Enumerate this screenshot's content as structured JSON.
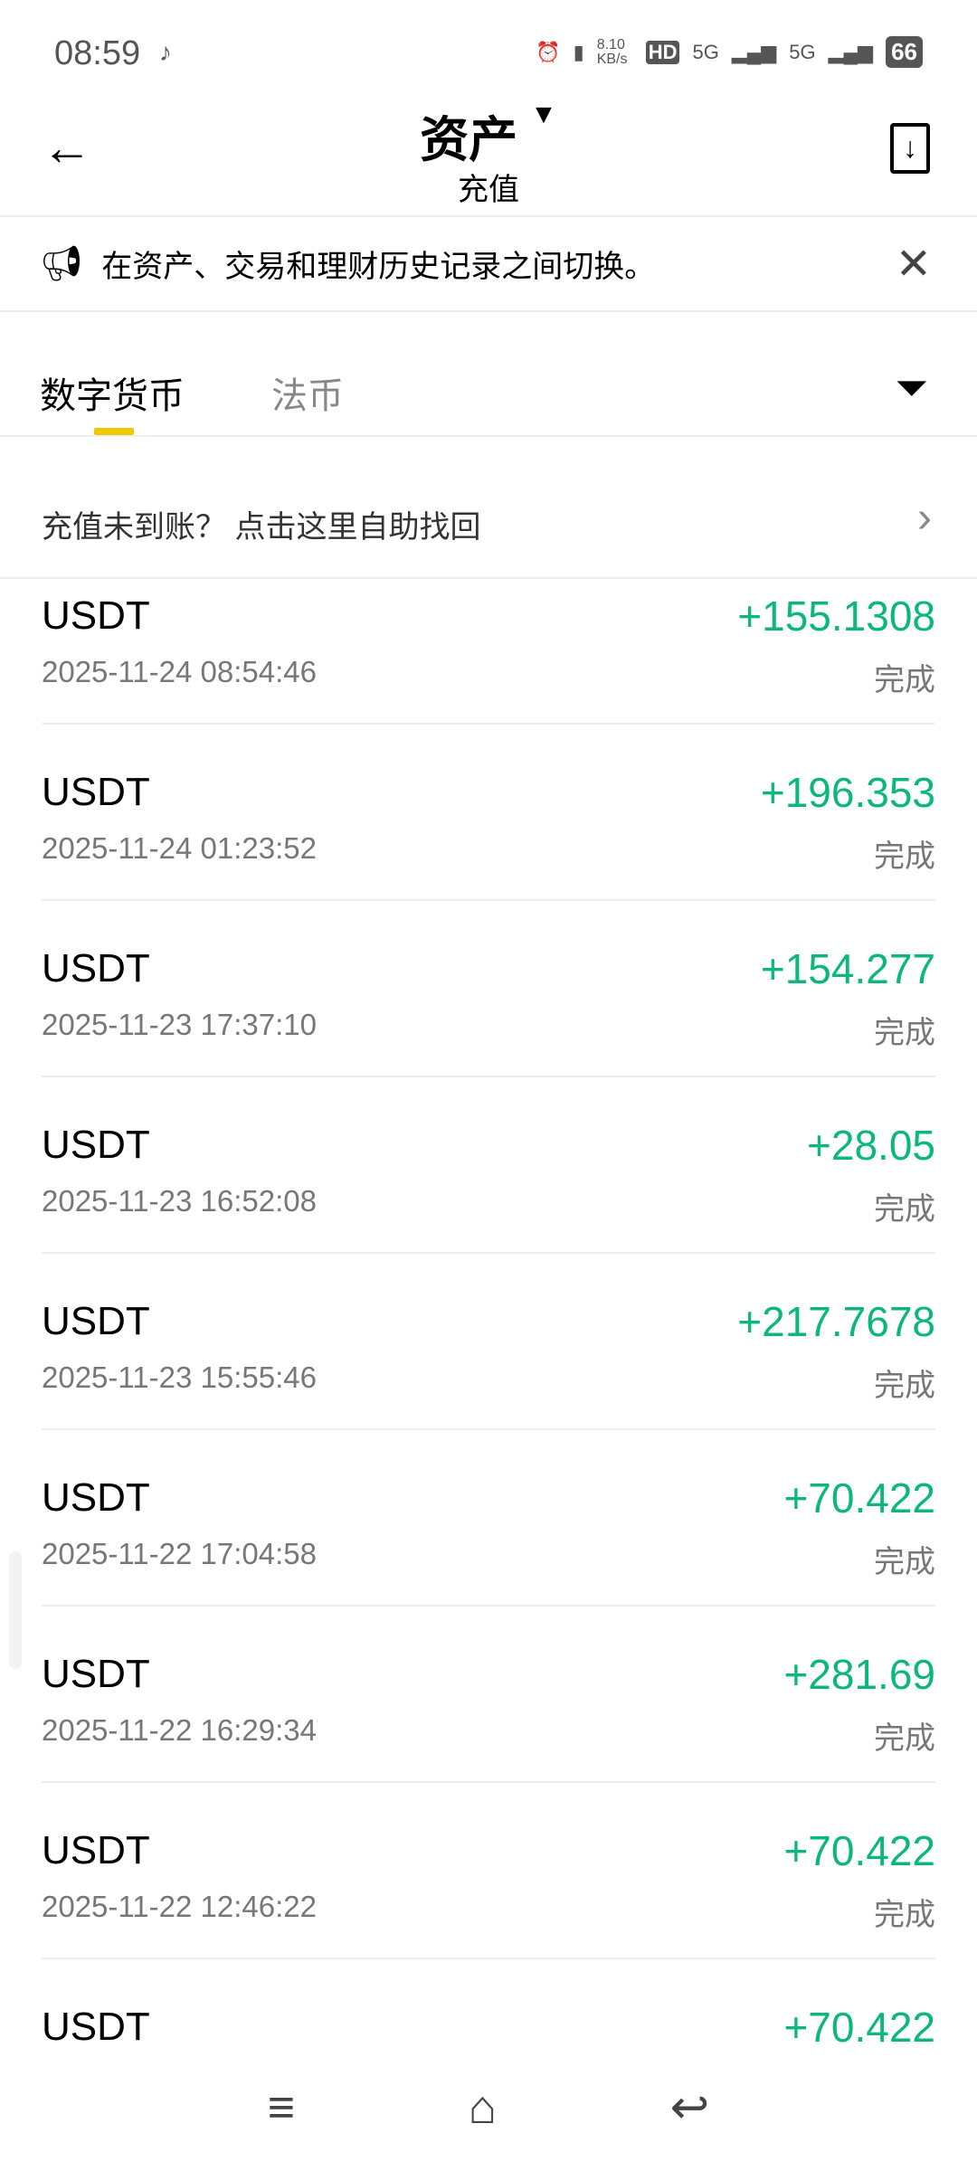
{
  "status_bar": {
    "time": "08:59",
    "net_speed": "8.10 KB/s",
    "hd": "HD",
    "sim1": "5G",
    "sim2": "5G",
    "battery": "66"
  },
  "header": {
    "title": "资产",
    "subtitle": "充值"
  },
  "banner": {
    "text": "在资产、交易和理财历史记录之间切换。"
  },
  "tabs": [
    {
      "label": "数字货币",
      "active": true
    },
    {
      "label": "法币",
      "active": false
    }
  ],
  "help": {
    "text": "充值未到账？ 点击这里自助找回"
  },
  "colors": {
    "positive": "#0bb87a",
    "tab_indicator": "#f0c800"
  },
  "records": [
    {
      "coin": "USDT",
      "date": "2025-11-24 08:54:46",
      "amount": "+155.1308",
      "status": "完成"
    },
    {
      "coin": "USDT",
      "date": "2025-11-24 01:23:52",
      "amount": "+196.353",
      "status": "完成"
    },
    {
      "coin": "USDT",
      "date": "2025-11-23 17:37:10",
      "amount": "+154.277",
      "status": "完成"
    },
    {
      "coin": "USDT",
      "date": "2025-11-23 16:52:08",
      "amount": "+28.05",
      "status": "完成"
    },
    {
      "coin": "USDT",
      "date": "2025-11-23 15:55:46",
      "amount": "+217.7678",
      "status": "完成"
    },
    {
      "coin": "USDT",
      "date": "2025-11-22 17:04:58",
      "amount": "+70.422",
      "status": "完成"
    },
    {
      "coin": "USDT",
      "date": "2025-11-22 16:29:34",
      "amount": "+281.69",
      "status": "完成"
    },
    {
      "coin": "USDT",
      "date": "2025-11-22 12:46:22",
      "amount": "+70.422",
      "status": "完成"
    },
    {
      "coin": "USDT",
      "date": "",
      "amount": "+70.422",
      "status": ""
    }
  ]
}
